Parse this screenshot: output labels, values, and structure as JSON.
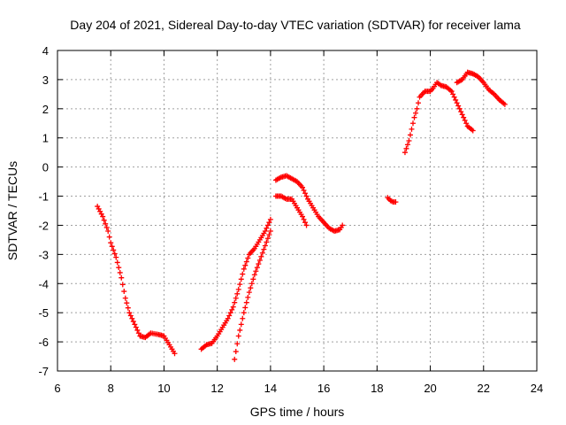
{
  "chart_data": {
    "type": "scatter",
    "title": "Day 204 of 2021, Sidereal Day-to-day VTEC variation (SDTVAR) for receiver lama",
    "xlabel": "GPS time / hours",
    "ylabel": "SDTVAR / TECUs",
    "xlim": [
      6,
      24
    ],
    "ylim": [
      -7,
      4
    ],
    "xticks": [
      "6",
      "8",
      "10",
      "12",
      "14",
      "16",
      "18",
      "20",
      "22",
      "24"
    ],
    "yticks": [
      "-7",
      "-6",
      "-5",
      "-4",
      "-3",
      "-2",
      "-1",
      "0",
      "1",
      "2",
      "3",
      "4"
    ],
    "grid": true,
    "marker": "plus",
    "color": "#ff0000",
    "segments": [
      {
        "x": [
          7.5,
          7.7,
          7.9,
          8.0,
          8.2,
          8.4,
          8.55,
          8.7,
          8.9,
          9.1,
          9.3,
          9.5,
          9.8,
          10.0,
          10.2,
          10.4
        ],
        "y": [
          -1.35,
          -1.7,
          -2.2,
          -2.6,
          -3.1,
          -3.8,
          -4.5,
          -5.0,
          -5.4,
          -5.8,
          -5.85,
          -5.7,
          -5.75,
          -5.8,
          -6.1,
          -6.4
        ]
      },
      {
        "x": [
          11.4,
          11.6,
          11.8,
          12.0,
          12.2,
          12.4,
          12.6,
          12.8,
          13.0,
          13.2,
          13.4,
          13.6,
          13.8,
          14.0
        ],
        "y": [
          -6.25,
          -6.1,
          -6.05,
          -5.8,
          -5.5,
          -5.2,
          -4.8,
          -4.2,
          -3.5,
          -3.0,
          -2.8,
          -2.5,
          -2.2,
          -1.8
        ]
      },
      {
        "x": [
          12.65,
          12.8,
          13.0,
          13.2,
          13.4,
          13.6,
          13.8,
          14.0
        ],
        "y": [
          -6.6,
          -5.8,
          -5.0,
          -4.3,
          -3.7,
          -3.2,
          -2.7,
          -2.2
        ]
      },
      {
        "x": [
          14.2,
          14.4,
          14.6,
          14.8,
          15.0,
          15.2,
          15.4,
          15.6,
          15.8,
          16.0,
          16.2,
          16.4,
          16.6,
          16.7
        ],
        "y": [
          -0.45,
          -0.35,
          -0.3,
          -0.4,
          -0.5,
          -0.7,
          -1.1,
          -1.4,
          -1.7,
          -1.9,
          -2.1,
          -2.2,
          -2.15,
          -2.0
        ]
      },
      {
        "x": [
          14.2,
          14.4,
          14.6,
          14.8,
          15.0,
          15.2,
          15.35
        ],
        "y": [
          -1.0,
          -1.0,
          -1.1,
          -1.1,
          -1.4,
          -1.7,
          -2.0
        ]
      },
      {
        "x": [
          18.4,
          18.5,
          18.6,
          18.7
        ],
        "y": [
          -1.05,
          -1.15,
          -1.2,
          -1.2
        ]
      },
      {
        "x": [
          19.05,
          19.2,
          19.4,
          19.5,
          19.6,
          19.8,
          20.0,
          20.1,
          20.25,
          20.4,
          20.6,
          20.8,
          21.0,
          21.2,
          21.4,
          21.6
        ],
        "y": [
          0.5,
          0.9,
          1.7,
          2.0,
          2.4,
          2.6,
          2.6,
          2.7,
          2.9,
          2.8,
          2.75,
          2.6,
          2.2,
          1.8,
          1.4,
          1.25
        ]
      },
      {
        "x": [
          21.0,
          21.2,
          21.4,
          21.6,
          21.8,
          22.0,
          22.2,
          22.4,
          22.6,
          22.8
        ],
        "y": [
          2.9,
          3.0,
          3.25,
          3.2,
          3.1,
          2.9,
          2.65,
          2.5,
          2.3,
          2.15
        ]
      }
    ]
  }
}
